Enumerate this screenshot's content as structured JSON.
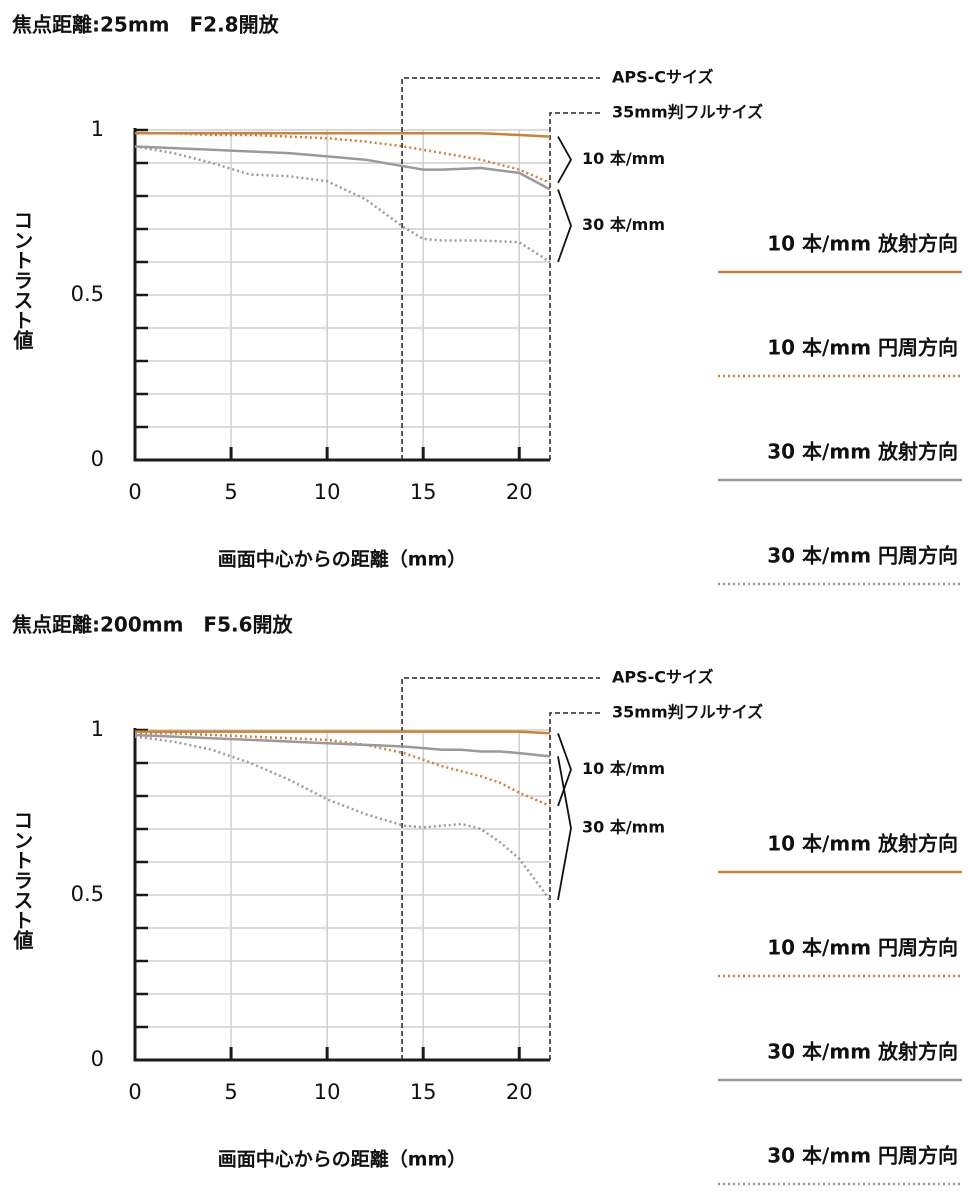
{
  "chart_data": [
    {
      "type": "line",
      "title": "焦点距離:25mm　F2.8開放",
      "x_label": "画面中心からの距離（mm）",
      "y_label": "コントラスト値",
      "x": [
        0,
        2,
        4,
        6,
        8,
        10,
        12,
        14,
        15,
        16,
        18,
        20,
        21.6
      ],
      "xlim": [
        0,
        21.6
      ],
      "ylim": [
        0,
        1
      ],
      "xticks": [
        0,
        5,
        10,
        15,
        20
      ],
      "yticks": [
        0,
        0.5,
        1
      ],
      "y_minor_ticks": [
        0.1,
        0.2,
        0.3,
        0.4,
        0.6,
        0.7,
        0.8,
        0.9
      ],
      "grid": true,
      "legend": "right",
      "series": [
        {
          "name": "10 本/mm 放射方向",
          "color": "#c8843c",
          "style": "solid",
          "values": [
            0.99,
            0.99,
            0.99,
            0.99,
            0.99,
            0.99,
            0.99,
            0.99,
            0.99,
            0.99,
            0.99,
            0.985,
            0.98
          ]
        },
        {
          "name": "10 本/mm 円周方向",
          "color": "#c8843c",
          "style": "dotted",
          "values": [
            0.99,
            0.99,
            0.985,
            0.985,
            0.98,
            0.975,
            0.965,
            0.95,
            0.94,
            0.93,
            0.91,
            0.88,
            0.84
          ]
        },
        {
          "name": "30 本/mm 放射方向",
          "color": "#9a9a9a",
          "style": "solid",
          "values": [
            0.95,
            0.945,
            0.94,
            0.935,
            0.93,
            0.92,
            0.91,
            0.89,
            0.88,
            0.88,
            0.885,
            0.87,
            0.82
          ]
        },
        {
          "name": "30 本/mm 円周方向",
          "color": "#9a9a9a",
          "style": "dotted",
          "values": [
            0.95,
            0.93,
            0.9,
            0.865,
            0.86,
            0.845,
            0.79,
            0.705,
            0.67,
            0.665,
            0.665,
            0.66,
            0.6
          ]
        }
      ],
      "size_lines": [
        {
          "x": 13.9,
          "label": "APS-Cサイズ"
        },
        {
          "x": 21.6,
          "label": "35mm判フルサイズ"
        }
      ],
      "bracket_labels": [
        "10 本/mm",
        "30 本/mm"
      ]
    },
    {
      "type": "line",
      "title": "焦点距離:200mm　F5.6開放",
      "x_label": "画面中心からの距離（mm）",
      "y_label": "コントラスト値",
      "x": [
        0,
        2,
        4,
        6,
        8,
        10,
        12,
        14,
        15,
        16,
        17,
        18,
        19,
        20,
        21.6
      ],
      "xlim": [
        0,
        21.6
      ],
      "ylim": [
        0,
        1
      ],
      "xticks": [
        0,
        5,
        10,
        15,
        20
      ],
      "yticks": [
        0,
        0.5,
        1
      ],
      "y_minor_ticks": [
        0.1,
        0.2,
        0.3,
        0.4,
        0.6,
        0.7,
        0.8,
        0.9
      ],
      "grid": true,
      "legend": "right",
      "series": [
        {
          "name": "10 本/mm 放射方向",
          "color": "#c8843c",
          "style": "solid",
          "values": [
            0.995,
            0.995,
            0.995,
            0.995,
            0.995,
            0.995,
            0.995,
            0.995,
            0.995,
            0.995,
            0.995,
            0.995,
            0.995,
            0.995,
            0.99
          ]
        },
        {
          "name": "10 本/mm 円周方向",
          "color": "#c8843c",
          "style": "dotted",
          "values": [
            0.99,
            0.99,
            0.985,
            0.98,
            0.975,
            0.97,
            0.955,
            0.93,
            0.91,
            0.89,
            0.875,
            0.86,
            0.84,
            0.81,
            0.77
          ]
        },
        {
          "name": "30 本/mm 放射方向",
          "color": "#9a9a9a",
          "style": "solid",
          "values": [
            0.985,
            0.98,
            0.975,
            0.97,
            0.965,
            0.96,
            0.955,
            0.95,
            0.945,
            0.94,
            0.94,
            0.935,
            0.935,
            0.93,
            0.92
          ]
        },
        {
          "name": "30 本/mm 円周方向",
          "color": "#9a9a9a",
          "style": "dotted",
          "values": [
            0.98,
            0.965,
            0.94,
            0.9,
            0.85,
            0.79,
            0.745,
            0.71,
            0.705,
            0.71,
            0.715,
            0.7,
            0.66,
            0.61,
            0.485
          ]
        }
      ],
      "size_lines": [
        {
          "x": 13.9,
          "label": "APS-Cサイズ"
        },
        {
          "x": 21.6,
          "label": "35mm判フルサイズ"
        }
      ],
      "bracket_labels": [
        "10 本/mm",
        "30 本/mm"
      ]
    }
  ]
}
